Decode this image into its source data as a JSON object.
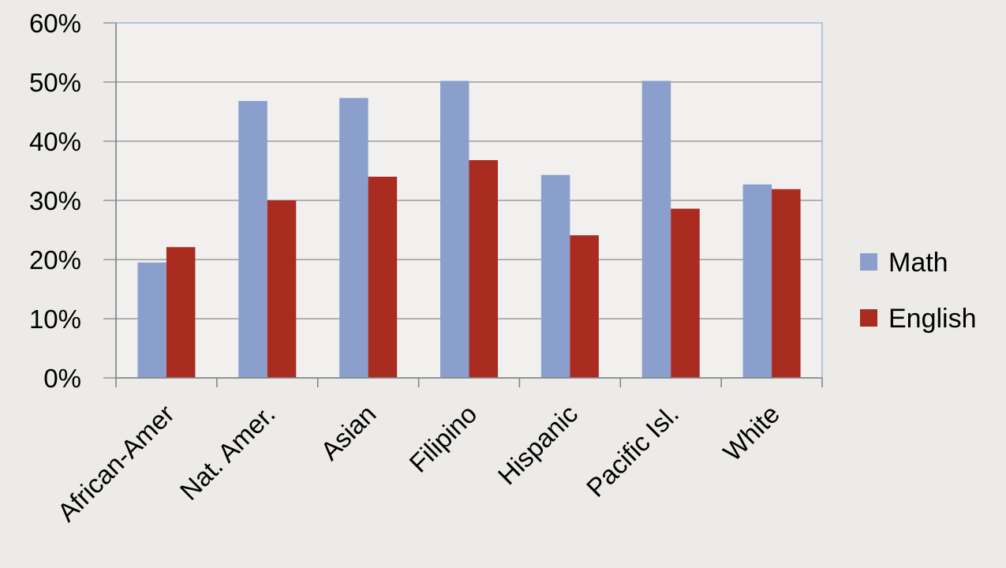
{
  "chart_data": {
    "type": "bar",
    "title": "",
    "xlabel": "",
    "ylabel": "",
    "categories": [
      "African-Amer",
      "Nat. Amer.",
      "Asian",
      "Filipino",
      "Hispanic",
      "Pacific Isl.",
      "White"
    ],
    "series": [
      {
        "name": "Math",
        "color": "#8b9fcd",
        "values": [
          19.5,
          46.8,
          47.3,
          50.2,
          34.3,
          50.2,
          32.7
        ]
      },
      {
        "name": "English",
        "color": "#aa2b20",
        "values": [
          22.1,
          30.0,
          34.0,
          36.8,
          24.1,
          28.6,
          31.9
        ]
      }
    ],
    "ylim": [
      0,
      60
    ],
    "yticks": [
      "0%",
      "10%",
      "20%",
      "30%",
      "40%",
      "50%",
      "60%"
    ],
    "grid": true,
    "legend_position": "right"
  }
}
